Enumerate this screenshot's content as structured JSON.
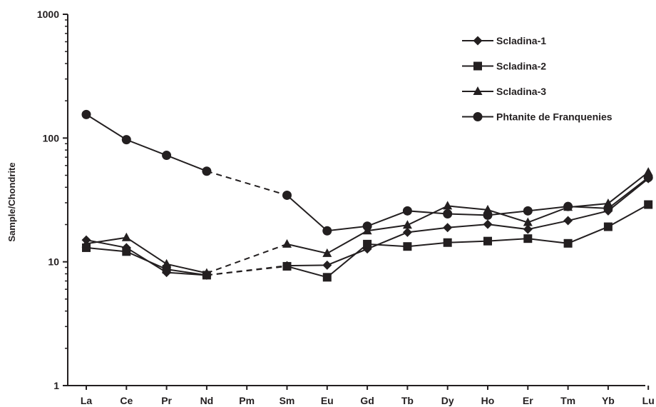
{
  "chart_data": {
    "type": "line",
    "ylabel": "Sample/Chondrite",
    "xlabel": "",
    "yscale": "log",
    "ylim": [
      1,
      1000
    ],
    "yticks": [
      "1",
      "10",
      "100",
      "1000"
    ],
    "grid": false,
    "legend_position": "top-right",
    "categories": [
      "La",
      "Ce",
      "Pr",
      "Nd",
      "Pm",
      "Sm",
      "Eu",
      "Gd",
      "Tb",
      "Dy",
      "Ho",
      "Er",
      "Tm",
      "Yb",
      "Lu"
    ],
    "series": [
      {
        "name": "Scladina-1",
        "marker": "diamond",
        "values": [
          15,
          13,
          8.2,
          7.8,
          null,
          9.3,
          9.4,
          12.7,
          17.3,
          18.9,
          20.1,
          18.3,
          21.5,
          25.8,
          47
        ]
      },
      {
        "name": "Scladina-2",
        "marker": "square",
        "values": [
          13,
          12.1,
          8.7,
          7.8,
          null,
          9.2,
          7.5,
          13.9,
          13.3,
          14.3,
          14.7,
          15.4,
          14.1,
          19.2,
          29
        ]
      },
      {
        "name": "Scladina-3",
        "marker": "triangle",
        "values": [
          14,
          15.7,
          9.6,
          8.1,
          null,
          13.9,
          11.7,
          17.8,
          19.8,
          28.3,
          26.3,
          20.8,
          27.6,
          29.6,
          53
        ]
      },
      {
        "name": "Phtanite de Franquenies",
        "marker": "circle",
        "values": [
          155,
          97,
          72.5,
          54,
          null,
          34.5,
          17.8,
          19.4,
          25.8,
          24.4,
          23.8,
          25.8,
          28,
          27,
          48
        ]
      }
    ]
  }
}
